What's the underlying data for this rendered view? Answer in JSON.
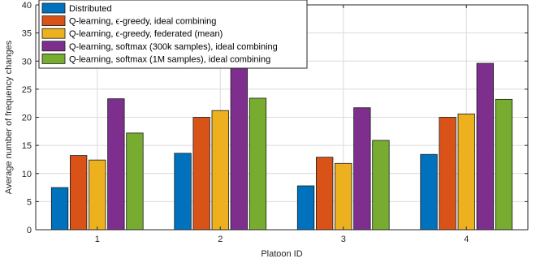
{
  "chart_data": {
    "type": "bar",
    "title": "",
    "xlabel": "Platoon ID",
    "ylabel": "Average number of frequency changes",
    "categories": [
      "1",
      "2",
      "3",
      "4"
    ],
    "ylim": [
      0,
      40
    ],
    "yticks": [
      0,
      5,
      10,
      15,
      20,
      25,
      30,
      35,
      40
    ],
    "grid": true,
    "legend_position": "top-left",
    "series": [
      {
        "name": "Distributed",
        "color": "#0072BD",
        "values": [
          7.5,
          13.6,
          7.8,
          13.4
        ]
      },
      {
        "name": "Q-learning, ϵ-greedy, ideal combining",
        "color": "#D95319",
        "values": [
          13.2,
          20.0,
          12.9,
          20.0
        ]
      },
      {
        "name": "Q-learning, ϵ-greedy, federated (mean)",
        "color": "#EDB120",
        "values": [
          12.4,
          21.2,
          11.8,
          20.6
        ]
      },
      {
        "name": "Q-learning, softmax (300k samples), ideal combining",
        "color": "#7E2F8E",
        "values": [
          23.3,
          28.8,
          21.7,
          29.6
        ]
      },
      {
        "name": "Q-learning, softmax (1M samples), ideal combining",
        "color": "#77AC30",
        "values": [
          17.2,
          23.4,
          15.9,
          23.2
        ]
      }
    ]
  }
}
